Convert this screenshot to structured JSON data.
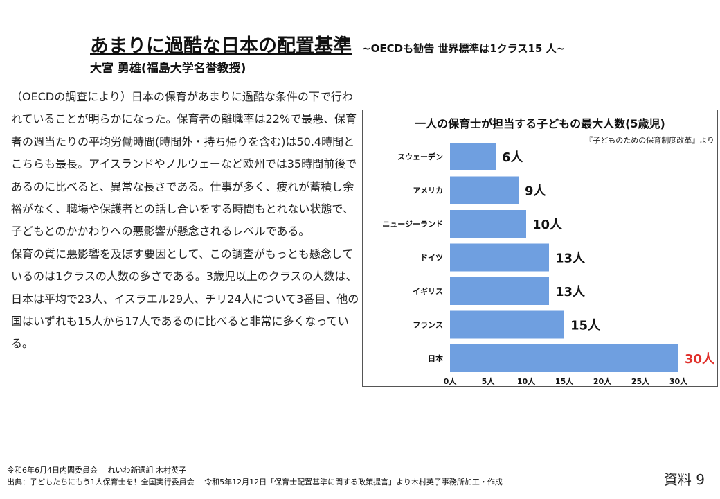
{
  "header": {
    "title": "あまりに過酷な日本の配置基準",
    "subtitle": "~OECDも勧告 世界標準は1クラス15 人~",
    "author": "大宮 勇雄(福島大学名誉教授)"
  },
  "body": {
    "paragraph1": "（OECDの調査により）日本の保育があまりに過酷な条件の下で行われていることが明らかになった。保育者の離職率は22%で最悪、保育者の週当たりの平均労働時間(時間外・持ち帰りを含む)は50.4時間とこちらも最長。アイスランドやノルウェーなど欧州では35時間前後であるのに比べると、異常な長さである。仕事が多く、疲れが蓄積し余裕がなく、職場や保護者との話し合いをする時間もとれない状態で、子どもとのかかわりへの悪影響が懸念されるレベルである。",
    "paragraph2": "保育の質に悪影響を及ぼす要因として、この調査がもっとも懸念しているのは1クラスの人数の多さである。3歳児以上のクラスの人数は、日本は平均で23人、イスラエル29人、チリ24人について3番目、他の国はいずれも15人から17人であるのに比べると非常に多くなっている。"
  },
  "chart_data": {
    "type": "bar",
    "orientation": "horizontal",
    "title": "一人の保育士が担当する子どもの最大人数(5歳児)",
    "source_note": "『子どものための保育制度改革』より",
    "categories": [
      "スウェーデン",
      "アメリカ",
      "ニュージーランド",
      "ドイツ",
      "イギリス",
      "フランス",
      "日本"
    ],
    "values": [
      6,
      9,
      10,
      13,
      13,
      15,
      30
    ],
    "value_labels": [
      "6人",
      "9人",
      "10人",
      "13人",
      "13人",
      "15人",
      "30人"
    ],
    "highlight_index": 6,
    "xlim": [
      0,
      30
    ],
    "ticks": [
      0,
      5,
      10,
      15,
      20,
      25,
      30
    ],
    "tick_labels": [
      "0人",
      "5人",
      "10人",
      "15人",
      "20人",
      "25人",
      "30人"
    ],
    "colors": {
      "bar": "#6F9FE0",
      "label": "#111111",
      "highlight_label": "#E0302B"
    }
  },
  "footer": {
    "line1": "令和6年6月4日内閣委員会　 れいわ新選組 木村英子",
    "line2": "出典：子どもたちにもう1人保育士を！全国実行委員会　 令和5年12月12日「保育士配置基準に関する政策提言」より木村英子事務所加工・作成"
  },
  "doc_label": "資料 9"
}
